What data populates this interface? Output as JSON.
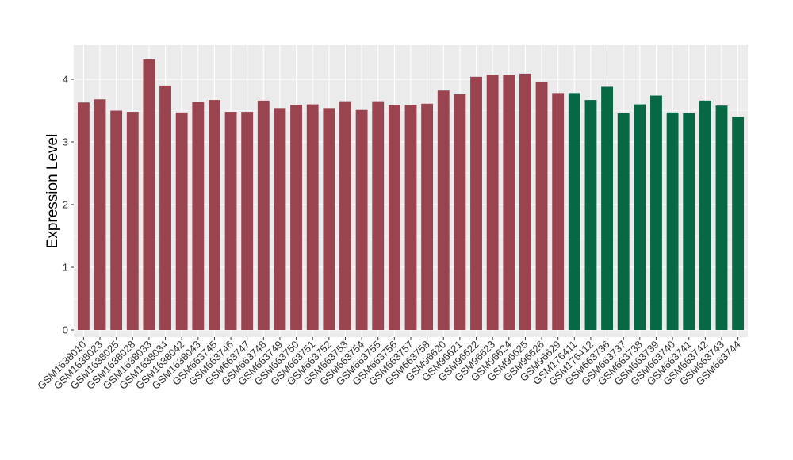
{
  "chart_data": {
    "type": "bar",
    "title": "",
    "xlabel": "",
    "ylabel": "Expression Level",
    "ylim": [
      0,
      4.45
    ],
    "yticks": [
      0,
      1,
      2,
      3,
      4
    ],
    "grid": true,
    "legend": "none",
    "categories": [
      "GSM1638010",
      "GSM1638023",
      "GSM1638025",
      "GSM1638028",
      "GSM1638033",
      "GSM1638034",
      "GSM1638042",
      "GSM1638043",
      "GSM663745",
      "GSM663746",
      "GSM663747",
      "GSM663748",
      "GSM663749",
      "GSM663750",
      "GSM663751",
      "GSM663752",
      "GSM663753",
      "GSM663754",
      "GSM663755",
      "GSM663756",
      "GSM663757",
      "GSM663758",
      "GSM96620",
      "GSM96621",
      "GSM96622",
      "GSM96623",
      "GSM96624",
      "GSM96625",
      "GSM96626",
      "GSM96629",
      "GSM176411",
      "GSM176412",
      "GSM663736",
      "GSM663737",
      "GSM663738",
      "GSM663739",
      "GSM663740",
      "GSM663741",
      "GSM663742",
      "GSM663743",
      "GSM663744"
    ],
    "values": [
      3.63,
      3.68,
      3.5,
      3.48,
      4.32,
      3.9,
      3.47,
      3.64,
      3.67,
      3.48,
      3.48,
      3.66,
      3.54,
      3.59,
      3.6,
      3.54,
      3.65,
      3.51,
      3.65,
      3.59,
      3.59,
      3.61,
      3.82,
      3.76,
      4.04,
      4.07,
      4.07,
      4.09,
      3.95,
      3.78,
      3.78,
      3.67,
      3.88,
      3.46,
      3.6,
      3.74,
      3.47,
      3.46,
      3.66,
      3.58,
      3.4
    ],
    "group_colors": [
      "#99444f",
      "#99444f",
      "#99444f",
      "#99444f",
      "#99444f",
      "#99444f",
      "#99444f",
      "#99444f",
      "#99444f",
      "#99444f",
      "#99444f",
      "#99444f",
      "#99444f",
      "#99444f",
      "#99444f",
      "#99444f",
      "#99444f",
      "#99444f",
      "#99444f",
      "#99444f",
      "#99444f",
      "#99444f",
      "#99444f",
      "#99444f",
      "#99444f",
      "#99444f",
      "#99444f",
      "#99444f",
      "#99444f",
      "#99444f",
      "#066944",
      "#066944",
      "#066944",
      "#066944",
      "#066944",
      "#066944",
      "#066944",
      "#066944",
      "#066944",
      "#066944",
      "#066944"
    ],
    "panel_background": "#ebebeb",
    "gridline_color": "#ffffff"
  }
}
